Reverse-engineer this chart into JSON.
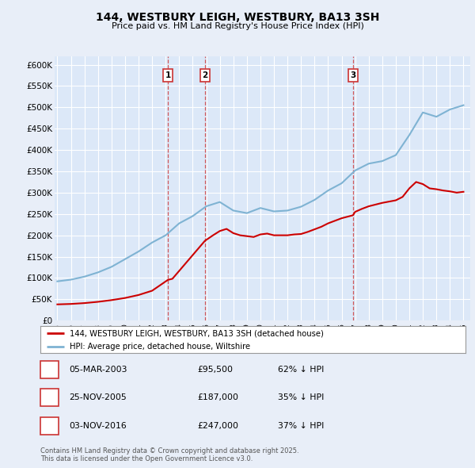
{
  "title": "144, WESTBURY LEIGH, WESTBURY, BA13 3SH",
  "subtitle": "Price paid vs. HM Land Registry's House Price Index (HPI)",
  "background_color": "#e8eef8",
  "plot_background": "#dce8f8",
  "grid_color": "#ffffff",
  "transactions": [
    {
      "num": 1,
      "date": "05-MAR-2003",
      "price": 95500,
      "year": 2003.17,
      "hpi_pct": "62% ↓ HPI"
    },
    {
      "num": 2,
      "date": "25-NOV-2005",
      "price": 187000,
      "year": 2005.9,
      "hpi_pct": "35% ↓ HPI"
    },
    {
      "num": 3,
      "date": "03-NOV-2016",
      "price": 247000,
      "year": 2016.84,
      "hpi_pct": "37% ↓ HPI"
    }
  ],
  "red_line_color": "#cc0000",
  "blue_line_color": "#7fb3d3",
  "vline_color": "#cc3333",
  "ylim": [
    0,
    620000
  ],
  "yticks": [
    0,
    50000,
    100000,
    150000,
    200000,
    250000,
    300000,
    350000,
    400000,
    450000,
    500000,
    550000,
    600000
  ],
  "ytick_labels": [
    "£0",
    "£50K",
    "£100K",
    "£150K",
    "£200K",
    "£250K",
    "£300K",
    "£350K",
    "£400K",
    "£450K",
    "£500K",
    "£550K",
    "£600K"
  ],
  "footnote": "Contains HM Land Registry data © Crown copyright and database right 2025.\nThis data is licensed under the Open Government Licence v3.0.",
  "legend_entries": [
    "144, WESTBURY LEIGH, WESTBURY, BA13 3SH (detached house)",
    "HPI: Average price, detached house, Wiltshire"
  ],
  "hpi_years": [
    1995,
    1996,
    1997,
    1998,
    1999,
    2000,
    2001,
    2002,
    2003,
    2004,
    2005,
    2006,
    2007,
    2008,
    2009,
    2010,
    2011,
    2012,
    2013,
    2014,
    2015,
    2016,
    2017,
    2018,
    2019,
    2020,
    2021,
    2022,
    2023,
    2024,
    2025
  ],
  "hpi_values": [
    92000,
    96000,
    103000,
    113000,
    126000,
    144000,
    162000,
    183000,
    200000,
    228000,
    245000,
    268000,
    278000,
    258000,
    252000,
    264000,
    256000,
    258000,
    267000,
    283000,
    305000,
    322000,
    352000,
    368000,
    374000,
    388000,
    435000,
    488000,
    478000,
    495000,
    505000
  ],
  "red_years": [
    1995,
    1996,
    1997,
    1998,
    1999,
    2000,
    2001,
    2002,
    2003.17,
    2003.5,
    2005.9,
    2006.5,
    2007,
    2007.5,
    2008,
    2008.5,
    2009,
    2009.5,
    2010,
    2010.5,
    2011,
    2011.5,
    2012,
    2012.5,
    2013,
    2013.5,
    2014,
    2014.5,
    2015,
    2015.5,
    2016,
    2016.84,
    2017,
    2017.5,
    2018,
    2018.5,
    2019,
    2019.5,
    2020,
    2020.5,
    2021,
    2021.5,
    2022,
    2022.5,
    2023,
    2023.5,
    2024,
    2024.5,
    2025
  ],
  "red_values": [
    38000,
    39000,
    41000,
    44000,
    48000,
    53000,
    60000,
    70000,
    95500,
    98000,
    187000,
    200000,
    210000,
    215000,
    205000,
    200000,
    198000,
    196000,
    202000,
    204000,
    200000,
    200000,
    200000,
    202000,
    203000,
    208000,
    214000,
    220000,
    228000,
    234000,
    240000,
    247000,
    255000,
    262000,
    268000,
    272000,
    276000,
    279000,
    282000,
    290000,
    310000,
    325000,
    320000,
    310000,
    308000,
    305000,
    303000,
    300000,
    302000
  ]
}
